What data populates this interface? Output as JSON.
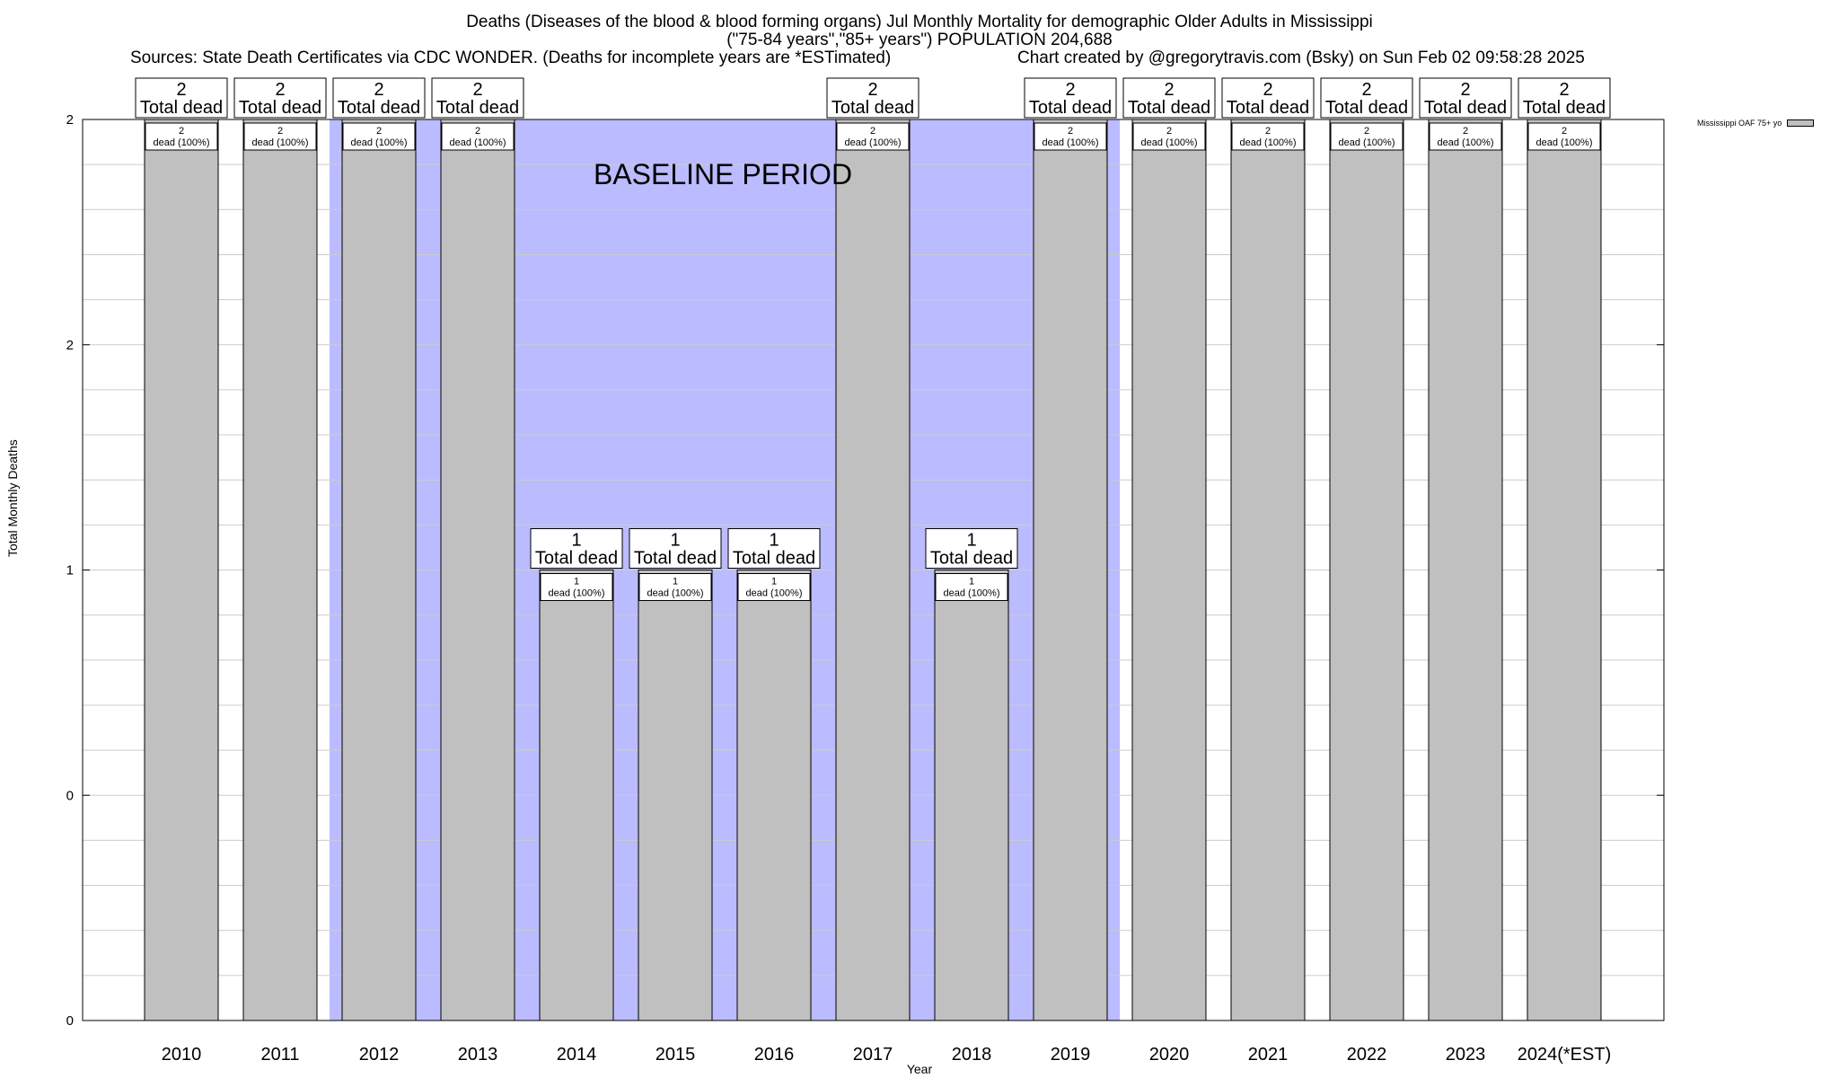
{
  "header": {
    "title_line1": "Deaths (Diseases of the blood & blood forming organs) Jul Monthly Mortality for demographic Older Adults in Mississippi",
    "title_line2": "(\"75-84 years\",\"85+ years\") POPULATION 204,688",
    "sources": "Sources: State Death Certificates via CDC WONDER. (Deaths for incomplete years are *ESTimated)",
    "credit": "Chart created by @gregorytravis.com (Bsky) on Sun Feb 02 09:58:28 2025"
  },
  "chart_data": {
    "type": "bar",
    "title": "Deaths (Diseases of the blood & blood forming organs) Jul Monthly Mortality for demographic Older Adults in Mississippi",
    "xlabel": "Year",
    "ylabel": "Total Monthly Deaths",
    "ylim": [
      0,
      2
    ],
    "ytick_labels": [
      "0",
      "0",
      "1",
      "2",
      "2"
    ],
    "grid": true,
    "legend_position": "top-right",
    "categories": [
      "2010",
      "2011",
      "2012",
      "2013",
      "2014",
      "2015",
      "2016",
      "2017",
      "2018",
      "2019",
      "2020",
      "2021",
      "2022",
      "2023",
      "2024(*EST)"
    ],
    "series": [
      {
        "name": "Mississippi OAF 75+ yo",
        "color": "#c0c0c0",
        "values": [
          2,
          2,
          2,
          2,
          1,
          1,
          1,
          2,
          1,
          2,
          2,
          2,
          2,
          2,
          2
        ]
      }
    ],
    "total_labels": [
      "2\nTotal dead",
      "2\nTotal dead",
      "2\nTotal dead",
      "2\nTotal dead",
      "1\nTotal dead",
      "1\nTotal dead",
      "1\nTotal dead",
      "2\nTotal dead",
      "1\nTotal dead",
      "2\nTotal dead",
      "2\nTotal dead",
      "2\nTotal dead",
      "2\nTotal dead",
      "2\nTotal dead",
      "2\nTotal dead"
    ],
    "inner_labels": [
      "2\ndead (100%)",
      "2\ndead (100%)",
      "2\ndead (100%)",
      "2\ndead (100%)",
      "1\ndead (100%)",
      "1\ndead (100%)",
      "1\ndead (100%)",
      "2\ndead (100%)",
      "1\ndead (100%)",
      "2\ndead (100%)",
      "2\ndead (100%)",
      "2\ndead (100%)",
      "2\ndead (100%)",
      "2\ndead (100%)",
      "2\ndead (100%)"
    ],
    "baseline": {
      "label": "BASELINE PERIOD",
      "start": "2012",
      "end": "2019",
      "color": "#bbbbff"
    }
  }
}
